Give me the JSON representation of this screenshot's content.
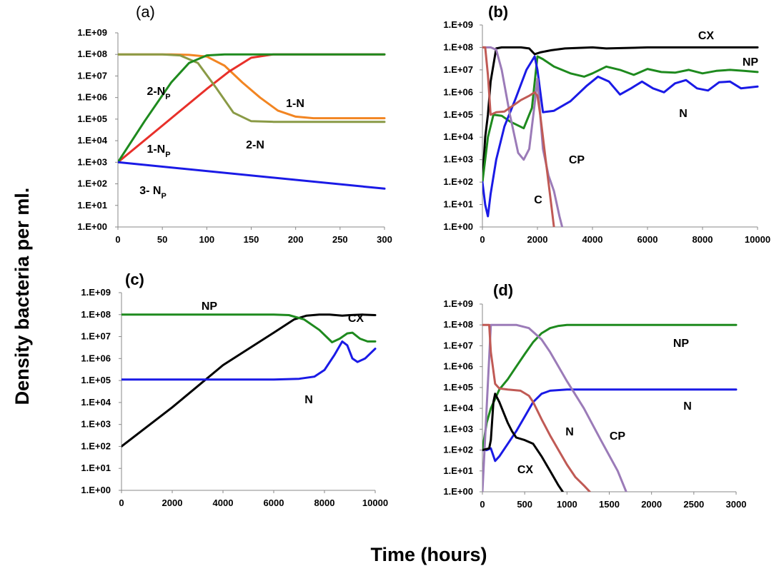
{
  "figure": {
    "ylabel": "Density bacteria per ml.",
    "xlabel": "Time (hours)"
  },
  "chart_data": [
    {
      "panel": "a",
      "label": "(a)",
      "type": "line",
      "yscale": "log",
      "xlim": [
        0,
        300
      ],
      "xticks": [
        0,
        50,
        100,
        150,
        200,
        250,
        300
      ],
      "ylim": [
        1,
        1000000000.0
      ],
      "yticklabels": [
        "1.E+00",
        "1.E+01",
        "1.E+02",
        "1.E+03",
        "1.E+04",
        "1.E+05",
        "1.E+06",
        "1.E+07",
        "1.E+08",
        "1.E+09"
      ],
      "series": [
        {
          "name": "1-N",
          "color": "#F28522",
          "x": [
            0,
            60,
            80,
            100,
            120,
            140,
            160,
            180,
            200,
            220,
            300
          ],
          "y": [
            100000000.0,
            100000000.0,
            95000000.0,
            80000000.0,
            30000000.0,
            5000000.0,
            1000000.0,
            250000.0,
            130000.0,
            110000.0,
            110000.0
          ]
        },
        {
          "name": "1-NP",
          "color": "#E8302A",
          "x": [
            0,
            50,
            100,
            125,
            150,
            175,
            300
          ],
          "y": [
            1000.0,
            50000.0,
            2500000.0,
            16000000.0,
            70000000.0,
            100000000.0,
            100000000.0
          ]
        },
        {
          "name": "2-N",
          "color": "#8A9A46",
          "x": [
            0,
            50,
            70,
            90,
            110,
            130,
            150,
            175,
            300
          ],
          "y": [
            100000000.0,
            100000000.0,
            90000000.0,
            40000000.0,
            3000000.0,
            200000.0,
            80000.0,
            75000.0,
            75000.0
          ]
        },
        {
          "name": "2-NP",
          "color": "#1E8A1E",
          "x": [
            0,
            30,
            60,
            80,
            100,
            120,
            300
          ],
          "y": [
            1000.0,
            80000.0,
            5000000.0,
            40000000.0,
            90000000.0,
            100000000.0,
            100000000.0
          ]
        },
        {
          "name": "3- NP",
          "color": "#1A1AE6",
          "x": [
            0,
            300
          ],
          "y": [
            1000.0,
            60
          ]
        }
      ],
      "labels": [
        {
          "text": "2-N",
          "sub": "P",
          "series": "2-NP"
        },
        {
          "text": "1-N",
          "sub": "",
          "series": "1-N"
        },
        {
          "text": "1-N",
          "sub": "P",
          "series": "1-NP"
        },
        {
          "text": "2-N",
          "sub": "",
          "series": "2-N"
        },
        {
          "text": "3- N",
          "sub": "P",
          "series": "3- NP"
        }
      ]
    },
    {
      "panel": "b",
      "label": "(b)",
      "type": "line",
      "yscale": "log",
      "xlim": [
        0,
        10000
      ],
      "xticks": [
        0,
        2000,
        4000,
        6000,
        8000,
        10000
      ],
      "ylim": [
        1,
        1000000000.0
      ],
      "yticklabels": [
        "1.E+09",
        "1.E+08",
        "1.E+07",
        "1.E+06",
        "1.E+05",
        "1.E+04",
        "1.E+03",
        "1.E+02",
        "1.E+01",
        "1.E+00"
      ],
      "series": [
        {
          "name": "CX",
          "color": "#000000",
          "x": [
            0,
            100,
            200,
            300,
            500,
            700,
            1000,
            1400,
            1700,
            1900,
            2100,
            2500,
            3000,
            3500,
            4000,
            4500,
            6000,
            8000,
            10000
          ],
          "y": [
            100,
            10000.0,
            100000.0,
            3000000.0,
            90000000.0,
            100000000.0,
            100000000.0,
            100000000.0,
            90000000.0,
            50000000.0,
            60000000.0,
            75000000.0,
            90000000.0,
            95000000.0,
            100000000.0,
            90000000.0,
            100000000.0,
            100000000.0,
            100000000.0
          ]
        },
        {
          "name": "NP",
          "color": "#1E8A1E",
          "x": [
            0,
            100,
            200,
            400,
            700,
            1000,
            1500,
            1800,
            2000,
            2200,
            2600,
            3200,
            3700,
            4000,
            4500,
            5000,
            5500,
            6000,
            6500,
            7000,
            7500,
            8000,
            8500,
            9000,
            9500,
            10000
          ],
          "y": [
            100,
            1000.0,
            10000.0,
            100000.0,
            90000.0,
            50000.0,
            25000.0,
            200000.0,
            40000000.0,
            30000000.0,
            14000000.0,
            7000000.0,
            5000000.0,
            7000000.0,
            14000000.0,
            10000000.0,
            6000000.0,
            11000000.0,
            8000000.0,
            7500000.0,
            10000000.0,
            7000000.0,
            9000000.0,
            10000000.0,
            9000000.0,
            8000000.0
          ]
        },
        {
          "name": "N",
          "color": "#1A1AE6",
          "x": [
            0,
            100,
            200,
            300,
            500,
            800,
            1200,
            1600,
            1900,
            2000,
            2200,
            2600,
            3200,
            3800,
            4200,
            4600,
            5000,
            5400,
            5800,
            6200,
            6600,
            7000,
            7400,
            7800,
            8200,
            8600,
            9000,
            9400,
            10000
          ],
          "y": [
            100,
            10,
            3,
            30,
            1000.0,
            30000.0,
            500000.0,
            10000000.0,
            40000000.0,
            10000000.0,
            130000.0,
            150000.0,
            400000.0,
            2000000.0,
            5000000.0,
            3000000.0,
            800000.0,
            1500000.0,
            3000000.0,
            1500000.0,
            1000000.0,
            2500000.0,
            3500000.0,
            1500000.0,
            1200000.0,
            2800000.0,
            3000000.0,
            1500000.0,
            1800000.0
          ]
        },
        {
          "name": "CP",
          "color": "#9B7BB8",
          "x": [
            0,
            100,
            200,
            300,
            500,
            700,
            1000,
            1300,
            1500,
            1700,
            1800,
            1900,
            2000,
            2100,
            2200,
            2400,
            2600,
            2800,
            2900
          ],
          "y": [
            100000000.0,
            100000000.0,
            100000000.0,
            100000000.0,
            80000000.0,
            10000000.0,
            100000.0,
            2000.0,
            1000.0,
            3000.0,
            30000.0,
            300000.0,
            4000000.0,
            100000.0,
            3000.0,
            200,
            40,
            3,
            1
          ]
        },
        {
          "name": "C",
          "color": "#C05A55",
          "x": [
            0,
            100,
            200,
            300,
            500,
            800,
            1100,
            1400,
            1700,
            1900,
            2000,
            2100,
            2200,
            2300,
            2400,
            2500,
            2600
          ],
          "y": [
            100000000.0,
            100000000.0,
            6000000.0,
            100000.0,
            130000.0,
            140000.0,
            250000.0,
            450000.0,
            700000.0,
            1000000.0,
            700000.0,
            100000.0,
            10000.0,
            1000.0,
            100,
            10,
            1
          ]
        }
      ],
      "labels": [
        {
          "text": "CX",
          "series": "CX"
        },
        {
          "text": "NP",
          "series": "NP"
        },
        {
          "text": "N",
          "series": "N"
        },
        {
          "text": "CP",
          "series": "CP"
        },
        {
          "text": "C",
          "series": "C"
        }
      ]
    },
    {
      "panel": "c",
      "label": "(c)",
      "type": "line",
      "yscale": "log",
      "xlim": [
        0,
        10000
      ],
      "xticks": [
        0,
        2000,
        4000,
        6000,
        8000,
        10000
      ],
      "ylim": [
        1,
        1000000000.0
      ],
      "yticklabels": [
        "1.E+00",
        "1.E+01",
        "1.E+02",
        "1.E+03",
        "1.E+04",
        "1.E+05",
        "1.E+06",
        "1.E+07",
        "1.E+08",
        "1.E+09"
      ],
      "series": [
        {
          "name": "CX",
          "color": "#000000",
          "x": [
            0,
            2000,
            4000,
            6000,
            6800,
            7300,
            7800,
            8200,
            8700,
            9000,
            9500,
            10000
          ],
          "y": [
            100,
            6000.0,
            500000.0,
            15000000.0,
            60000000.0,
            90000000.0,
            100000000.0,
            100000000.0,
            90000000.0,
            95000000.0,
            100000000.0,
            95000000.0
          ]
        },
        {
          "name": "NP",
          "color": "#1E8A1E",
          "x": [
            0,
            2000,
            4000,
            6000,
            6600,
            7200,
            7800,
            8300,
            8600,
            8900,
            9100,
            9400,
            9700,
            10000
          ],
          "y": [
            100000000.0,
            100000000.0,
            100000000.0,
            100000000.0,
            95000000.0,
            60000000.0,
            20000000.0,
            5500000.0,
            8000000.0,
            14000000.0,
            15000000.0,
            8000000.0,
            6000000.0,
            6000000.0
          ]
        },
        {
          "name": "N",
          "color": "#1A1AE6",
          "x": [
            0,
            2000,
            4000,
            6000,
            7000,
            7600,
            8000,
            8400,
            8700,
            8900,
            9100,
            9300,
            9600,
            10000
          ],
          "y": [
            110000.0,
            110000.0,
            110000.0,
            110000.0,
            120000.0,
            150000.0,
            300000.0,
            1500000.0,
            6000000.0,
            4000000.0,
            1000000.0,
            700000.0,
            1000000.0,
            2800000.0
          ]
        }
      ],
      "labels": [
        {
          "text": "NP",
          "series": "NP"
        },
        {
          "text": "CX",
          "series": "CX"
        },
        {
          "text": "N",
          "series": "N"
        }
      ]
    },
    {
      "panel": "d",
      "label": "(d)",
      "type": "line",
      "yscale": "log",
      "xlim": [
        0,
        3000
      ],
      "xticks": [
        0,
        500,
        1000,
        1500,
        2000,
        2500,
        3000
      ],
      "ylim": [
        1,
        1000000000.0
      ],
      "yticklabels": [
        "1.E+09",
        "1.E+08",
        "1.E+07",
        "1.E+06",
        "1.E+05",
        "1.E+04",
        "1.E+03",
        "1.E+02",
        "1.E+01",
        "1.E+00"
      ],
      "series": [
        {
          "name": "NP",
          "color": "#1E8A1E",
          "x": [
            0,
            50,
            100,
            200,
            300,
            400,
            500,
            600,
            700,
            800,
            900,
            1000,
            1500,
            2000,
            2500,
            3000
          ],
          "y": [
            100,
            2000.0,
            10000.0,
            80000.0,
            250000.0,
            1000000.0,
            4000000.0,
            15000000.0,
            40000000.0,
            70000000.0,
            90000000.0,
            100000000.0,
            100000000.0,
            100000000.0,
            100000000.0,
            100000000.0
          ]
        },
        {
          "name": "N",
          "color": "#1A1AE6",
          "x": [
            0,
            50,
            100,
            150,
            200,
            300,
            400,
            500,
            600,
            700,
            800,
            1000,
            1500,
            2000,
            2500,
            3000
          ],
          "y": [
            100,
            100,
            120,
            30,
            50,
            200,
            800,
            4000.0,
            20000.0,
            50000.0,
            70000.0,
            80000.0,
            80000.0,
            80000.0,
            80000.0,
            80000.0
          ]
        },
        {
          "name": "CP",
          "color": "#9B7BB8",
          "x": [
            0,
            100,
            150,
            200,
            400,
            550,
            700,
            800,
            1000,
            1200,
            1400,
            1600,
            1700
          ],
          "y": [
            1,
            100000000.0,
            100000000.0,
            100000000.0,
            100000000.0,
            70000000.0,
            20000000.0,
            5000000.0,
            200000.0,
            10000.0,
            300,
            10,
            1
          ]
        },
        {
          "name": "C",
          "color": "#C05A55",
          "x": [
            0,
            80,
            100,
            150,
            200,
            300,
            450,
            550,
            600,
            700,
            800,
            900,
            1000,
            1100,
            1200,
            1270
          ],
          "y": [
            100000000.0,
            100000000.0,
            5000000.0,
            150000.0,
            90000.0,
            80000.0,
            70000.0,
            40000.0,
            20000.0,
            3000.0,
            500,
            100,
            20,
            5,
            2,
            1
          ]
        },
        {
          "name": "CX",
          "color": "#000000",
          "x": [
            0,
            80,
            100,
            130,
            150,
            200,
            260,
            300,
            350,
            400,
            500,
            600,
            700,
            800,
            900,
            950
          ],
          "y": [
            100,
            120,
            300,
            20000.0,
            50000.0,
            20000.0,
            5000.0,
            2000.0,
            800,
            400,
            300,
            200,
            50,
            10,
            2,
            1
          ]
        }
      ],
      "labels": [
        {
          "text": "NP",
          "series": "NP"
        },
        {
          "text": "N",
          "series": "N"
        },
        {
          "text": "N",
          "series": "C"
        },
        {
          "text": "CP",
          "series": "CP"
        },
        {
          "text": "CX",
          "series": "CX"
        }
      ]
    }
  ]
}
